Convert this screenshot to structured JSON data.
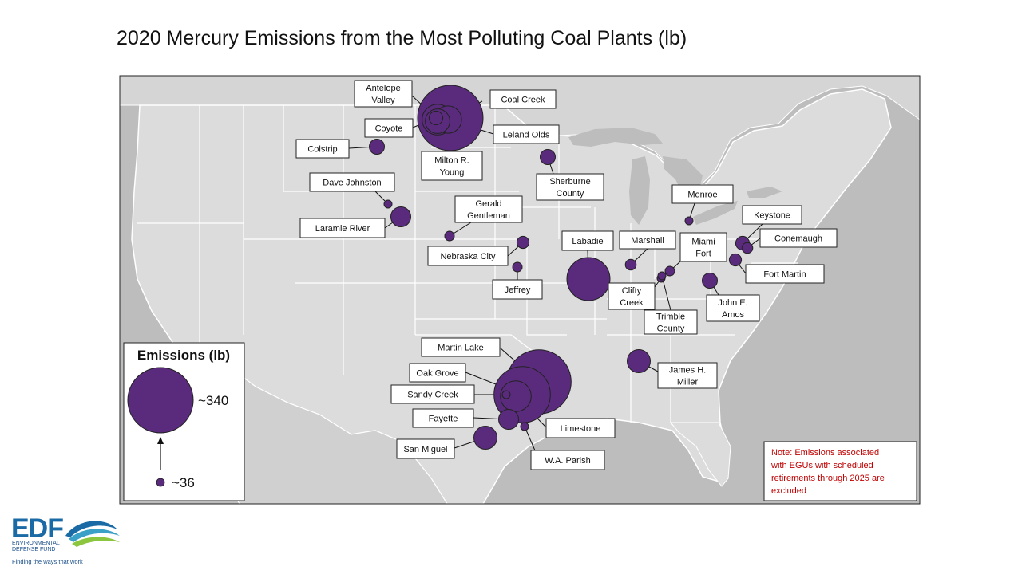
{
  "title": "2020 Mercury Emissions from the Most Polluting Coal Plants (lb)",
  "colors": {
    "bubble": "#5a2b7c",
    "land": "#dcdcdc",
    "water": "#bdbdbd",
    "state_border": "#ffffff",
    "note": "#c00000"
  },
  "legend": {
    "title": "Emissions (lb)",
    "max_label": "~340",
    "min_label": "~36",
    "max_value": 340,
    "min_value": 36
  },
  "note": {
    "lines": [
      "Note:  Emissions associated",
      "with EGUs with scheduled",
      "retirements through 2025 are",
      "excluded"
    ]
  },
  "plants": [
    {
      "name": "Coal Creek",
      "lines": [
        "Coal Creek"
      ],
      "emissions_lb": 340
    },
    {
      "name": "Antelope Valley",
      "lines": [
        "Antelope",
        "Valley"
      ],
      "emissions_lb": 100
    },
    {
      "name": "Coyote",
      "lines": [
        "Coyote"
      ],
      "emissions_lb": 45
    },
    {
      "name": "Leland Olds",
      "lines": [
        "Leland Olds"
      ],
      "emissions_lb": 85
    },
    {
      "name": "Milton R. Young",
      "lines": [
        "Milton R.",
        "Young"
      ],
      "emissions_lb": 75
    },
    {
      "name": "Colstrip",
      "lines": [
        "Colstrip"
      ],
      "emissions_lb": 48
    },
    {
      "name": "Dave Johnston",
      "lines": [
        "Dave Johnston"
      ],
      "emissions_lb": 36
    },
    {
      "name": "Laramie River",
      "lines": [
        "Laramie River"
      ],
      "emissions_lb": 60
    },
    {
      "name": "Gerald Gentleman",
      "lines": [
        "Gerald",
        "Gentleman"
      ],
      "emissions_lb": 38
    },
    {
      "name": "Nebraska City",
      "lines": [
        "Nebraska City"
      ],
      "emissions_lb": 42
    },
    {
      "name": "Jeffrey",
      "lines": [
        "Jeffrey"
      ],
      "emissions_lb": 38
    },
    {
      "name": "Sherburne County",
      "lines": [
        "Sherburne",
        "County"
      ],
      "emissions_lb": 48
    },
    {
      "name": "Labadie",
      "lines": [
        "Labadie"
      ],
      "emissions_lb": 165
    },
    {
      "name": "Marshall",
      "lines": [
        "Marshall"
      ],
      "emissions_lb": 40
    },
    {
      "name": "Monroe",
      "lines": [
        "Monroe"
      ],
      "emissions_lb": 36
    },
    {
      "name": "Miami Fort",
      "lines": [
        "Miami",
        "Fort"
      ],
      "emissions_lb": 38
    },
    {
      "name": "Clifty Creek",
      "lines": [
        "Clifty",
        "Creek"
      ],
      "emissions_lb": 36
    },
    {
      "name": "Trimble County",
      "lines": [
        "Trimble",
        "County"
      ],
      "emissions_lb": 36
    },
    {
      "name": "Keystone",
      "lines": [
        "Keystone"
      ],
      "emissions_lb": 45
    },
    {
      "name": "Conemaugh",
      "lines": [
        "Conemaugh"
      ],
      "emissions_lb": 40
    },
    {
      "name": "Fort Martin",
      "lines": [
        "Fort Martin"
      ],
      "emissions_lb": 42
    },
    {
      "name": "John E. Amos",
      "lines": [
        "John E.",
        "Amos"
      ],
      "emissions_lb": 48
    },
    {
      "name": "James H. Miller",
      "lines": [
        "James H.",
        "Miller"
      ],
      "emissions_lb": 70
    },
    {
      "name": "Martin Lake",
      "lines": [
        "Martin Lake"
      ],
      "emissions_lb": 330
    },
    {
      "name": "Oak Grove",
      "lines": [
        "Oak Grove"
      ],
      "emissions_lb": 260
    },
    {
      "name": "Sandy Creek",
      "lines": [
        "Sandy Creek"
      ],
      "emissions_lb": 36
    },
    {
      "name": "Limestone",
      "lines": [
        "Limestone"
      ],
      "emissions_lb": 100
    },
    {
      "name": "Fayette",
      "lines": [
        "Fayette"
      ],
      "emissions_lb": 60
    },
    {
      "name": "W.A. Parish",
      "lines": [
        "W.A. Parish"
      ],
      "emissions_lb": 36
    },
    {
      "name": "San Miguel",
      "lines": [
        "San Miguel"
      ],
      "emissions_lb": 70
    }
  ],
  "logo": {
    "brand": "EDF",
    "org_line1": "ENVIRONMENTAL",
    "org_line2": "DEFENSE FUND",
    "tagline": "Finding the ways that work"
  }
}
